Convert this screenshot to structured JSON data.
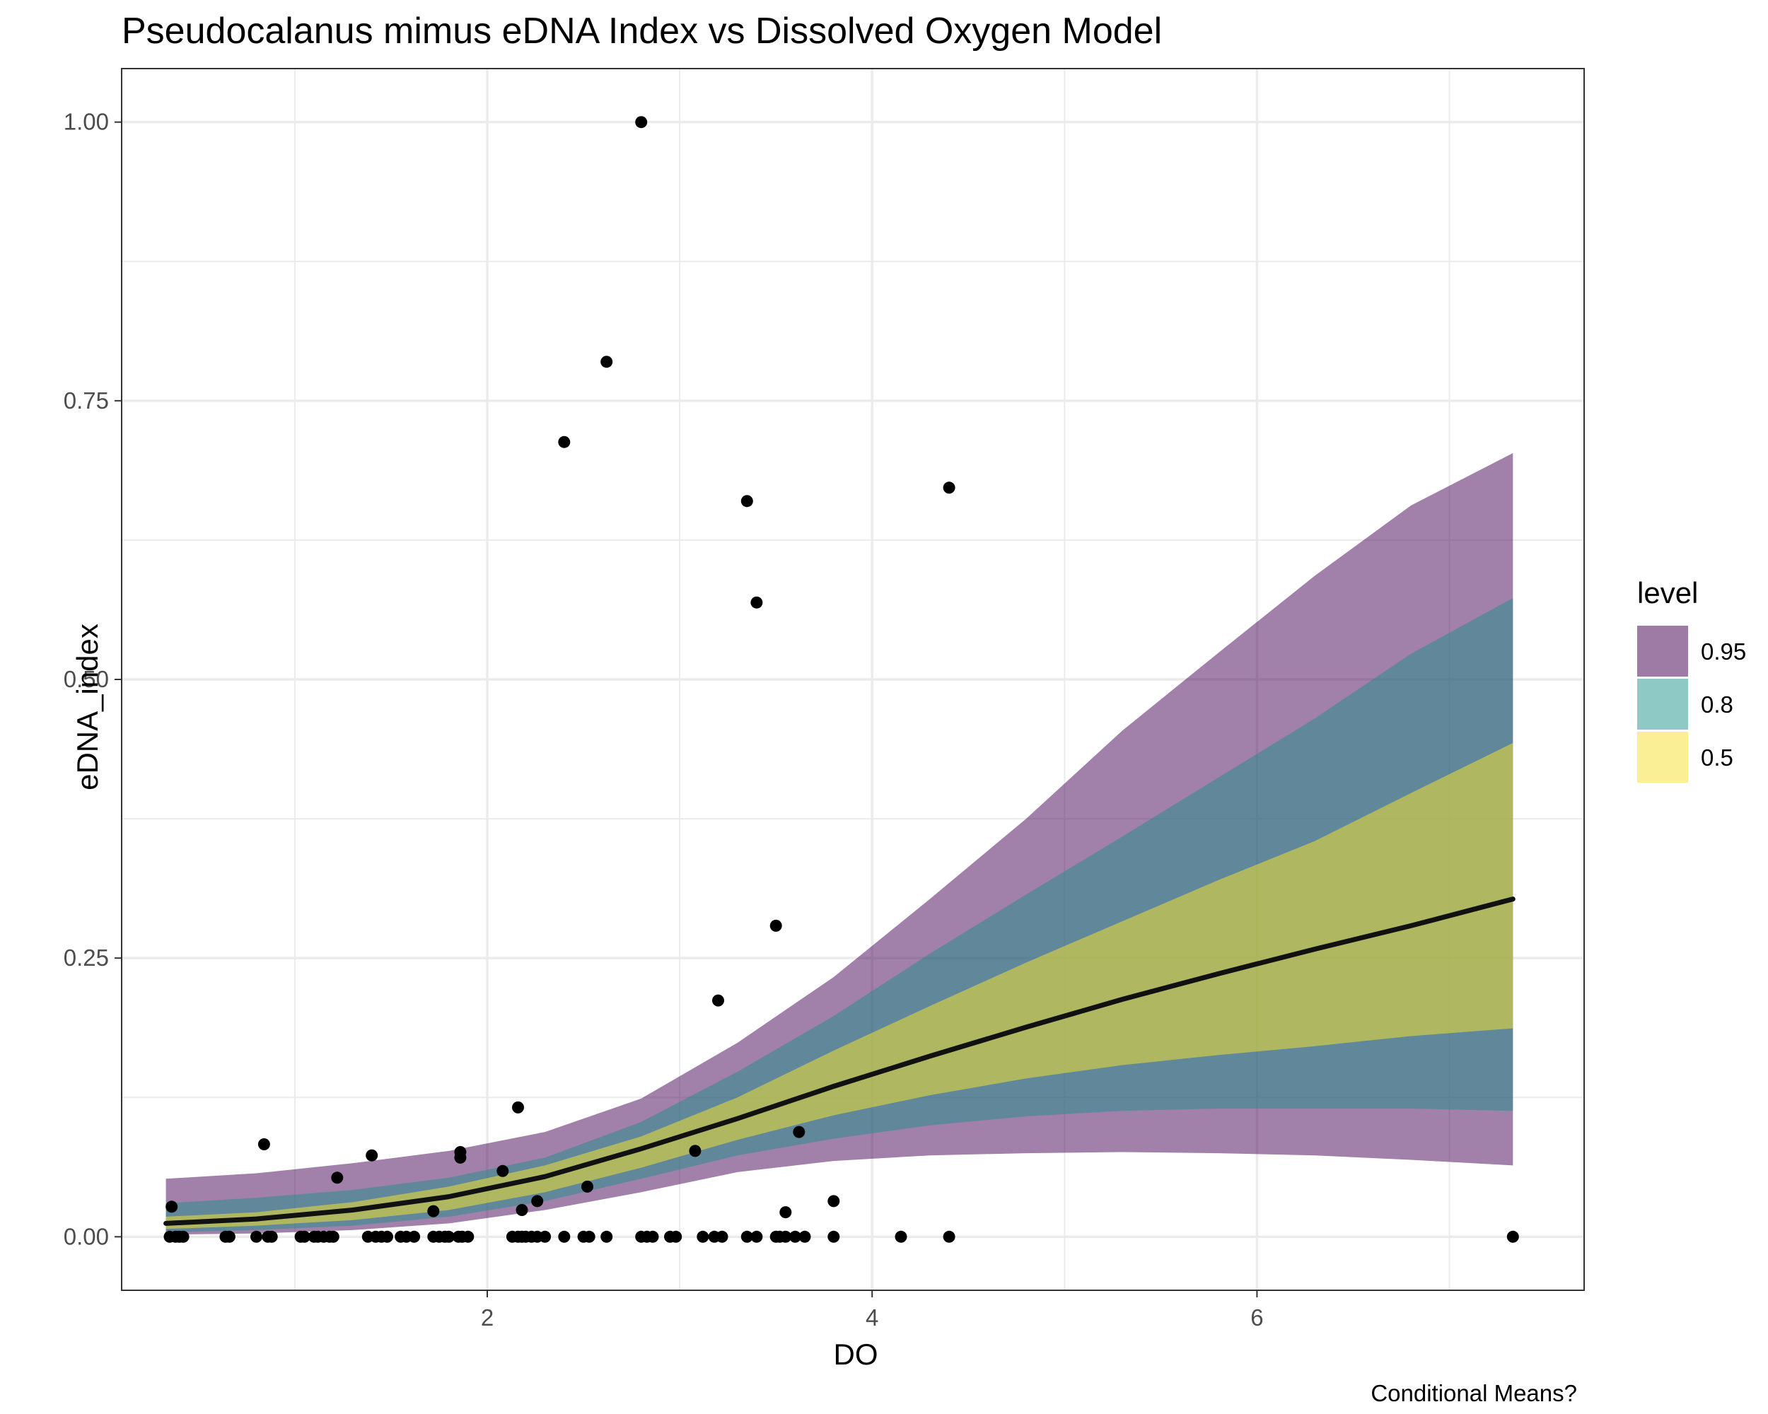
{
  "title": "Pseudocalanus mimus eDNA Index vs Dissolved Oxygen Model",
  "caption": "Conditional Means?",
  "legend": {
    "title": "level",
    "items": [
      {
        "label": "0.95",
        "color": "#9e7ba4"
      },
      {
        "label": "0.8",
        "color": "#8ec9c5"
      },
      {
        "label": "0.5",
        "color": "#fbef95"
      }
    ]
  },
  "chart_data": {
    "type": "line",
    "title": "Pseudocalanus mimus eDNA Index vs Dissolved Oxygen Model",
    "xlabel": "DO",
    "ylabel": "eDNA_index",
    "xlim": [
      0.1,
      7.7
    ],
    "ylim": [
      -0.048,
      1.048
    ],
    "x_ticks": [
      2,
      4,
      6
    ],
    "x_tick_labels": [
      "2",
      "4",
      "6"
    ],
    "y_ticks": [
      0,
      0.25,
      0.5,
      0.75,
      1.0
    ],
    "y_tick_labels": [
      "0.00",
      "0.25",
      "0.50",
      "0.75",
      "1.00"
    ],
    "grid": true,
    "legend_position": "right",
    "fit_line": {
      "name": "mean",
      "x": [
        0.33,
        0.8,
        1.3,
        1.8,
        2.3,
        2.8,
        3.3,
        3.8,
        4.3,
        4.8,
        5.3,
        5.8,
        6.3,
        6.8,
        7.33
      ],
      "y": [
        0.012,
        0.016,
        0.024,
        0.036,
        0.054,
        0.079,
        0.106,
        0.135,
        0.162,
        0.188,
        0.213,
        0.236,
        0.258,
        0.279,
        0.303
      ]
    },
    "ribbons": [
      {
        "name": "0.95",
        "x": [
          0.33,
          0.8,
          1.3,
          1.8,
          2.3,
          2.8,
          3.3,
          3.8,
          4.3,
          4.8,
          5.3,
          5.8,
          6.3,
          6.8,
          7.33
        ],
        "lower": [
          0.002,
          0.003,
          0.006,
          0.012,
          0.024,
          0.04,
          0.058,
          0.068,
          0.073,
          0.075,
          0.076,
          0.075,
          0.073,
          0.069,
          0.064
        ],
        "upper": [
          0.052,
          0.057,
          0.066,
          0.077,
          0.094,
          0.124,
          0.174,
          0.233,
          0.303,
          0.375,
          0.454,
          0.524,
          0.593,
          0.656,
          0.703
        ]
      },
      {
        "name": "0.8",
        "x": [
          0.33,
          0.8,
          1.3,
          1.8,
          2.3,
          2.8,
          3.3,
          3.8,
          4.3,
          4.8,
          5.3,
          5.8,
          6.3,
          6.8,
          7.33
        ],
        "lower": [
          0.004,
          0.006,
          0.01,
          0.018,
          0.032,
          0.052,
          0.073,
          0.088,
          0.1,
          0.108,
          0.113,
          0.115,
          0.115,
          0.115,
          0.113
        ],
        "upper": [
          0.03,
          0.035,
          0.042,
          0.053,
          0.071,
          0.103,
          0.148,
          0.198,
          0.254,
          0.307,
          0.359,
          0.412,
          0.465,
          0.523,
          0.573
        ]
      },
      {
        "name": "0.5",
        "x": [
          0.33,
          0.8,
          1.3,
          1.8,
          2.3,
          2.8,
          3.3,
          3.8,
          4.3,
          4.8,
          5.3,
          5.8,
          6.3,
          6.8,
          7.33
        ],
        "lower": [
          0.007,
          0.01,
          0.015,
          0.024,
          0.04,
          0.062,
          0.087,
          0.109,
          0.127,
          0.142,
          0.154,
          0.163,
          0.171,
          0.18,
          0.187
        ],
        "upper": [
          0.018,
          0.022,
          0.031,
          0.045,
          0.064,
          0.09,
          0.125,
          0.167,
          0.207,
          0.246,
          0.283,
          0.32,
          0.355,
          0.398,
          0.443
        ]
      }
    ],
    "points": {
      "x": [
        0.35,
        0.38,
        0.4,
        0.42,
        0.36,
        0.64,
        0.66,
        0.8,
        0.86,
        0.88,
        0.84,
        1.03,
        1.05,
        1.1,
        1.12,
        1.15,
        1.18,
        1.2,
        1.22,
        1.38,
        1.42,
        1.4,
        1.45,
        1.48,
        1.55,
        1.58,
        1.62,
        1.72,
        1.75,
        1.78,
        1.8,
        1.72,
        1.85,
        1.87,
        1.9,
        1.86,
        1.86,
        2.08,
        2.13,
        2.16,
        2.2,
        2.18,
        2.23,
        2.26,
        2.3,
        2.16,
        2.18,
        2.26,
        2.4,
        2.5,
        2.53,
        2.52,
        2.4,
        2.62,
        2.62,
        2.8,
        2.83,
        2.86,
        2.8,
        2.95,
        2.98,
        3.08,
        3.12,
        3.18,
        3.22,
        3.2,
        3.35,
        3.4,
        3.35,
        3.4,
        3.5,
        3.52,
        3.55,
        3.6,
        3.65,
        3.5,
        3.55,
        3.62,
        3.8,
        3.8,
        4.15,
        4.4,
        4.4,
        7.33
      ],
      "y": [
        0,
        0,
        0,
        0,
        0.027,
        0,
        0,
        0,
        0,
        0,
        0.083,
        0,
        0,
        0,
        0,
        0,
        0,
        0,
        0.053,
        0,
        0,
        0.073,
        0,
        0,
        0,
        0,
        0,
        0,
        0,
        0,
        0,
        0.023,
        0,
        0,
        0,
        0.076,
        0.071,
        0.059,
        0,
        0,
        0,
        0.024,
        0,
        0,
        0,
        0.116,
        0,
        0.032,
        0,
        0,
        0,
        0.045,
        0.713,
        0,
        0.785,
        0,
        0,
        0,
        1.0,
        0,
        0,
        0.077,
        0,
        0,
        0,
        0.212,
        0,
        0,
        0.66,
        0.569,
        0,
        0,
        0,
        0,
        0,
        0.279,
        0.022,
        0.094,
        0,
        0.032,
        0,
        0,
        0.672,
        0
      ]
    }
  }
}
